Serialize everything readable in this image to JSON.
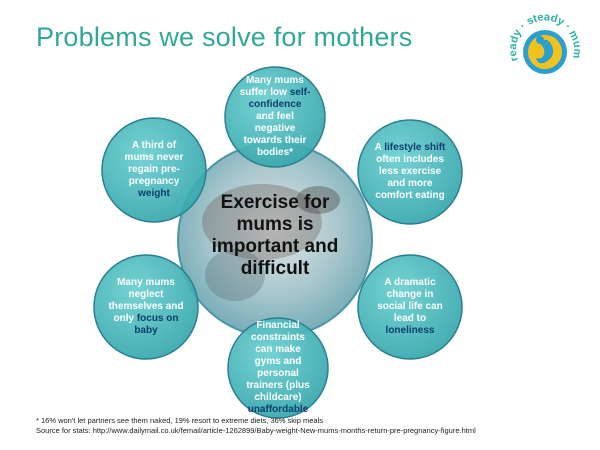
{
  "title": "Problems we solve for mothers",
  "logo": {
    "words": [
      "ready",
      "steady",
      "mums"
    ]
  },
  "center": {
    "text": "Exercise for mums is important and difficult"
  },
  "petals": [
    {
      "before": "Many mums suffer low ",
      "highlight": "self-confidence",
      "after": " and feel negative towards their bodies*"
    },
    {
      "before": "A ",
      "highlight": "lifestyle shift",
      "after": " often includes less exercise and more comfort eating"
    },
    {
      "before": "A dramatic change in social life can lead to ",
      "highlight": "loneliness",
      "after": ""
    },
    {
      "before": "Financial constraints can make gyms and personal trainers (plus childcare) ",
      "highlight": "unaffordable",
      "after": ""
    },
    {
      "before": "Many mums neglect themselves and only ",
      "highlight": "focus on baby",
      "after": ""
    },
    {
      "before": "A third of mums never regain pre-pregnancy ",
      "highlight": "weight",
      "after": ""
    }
  ],
  "footer": {
    "note": "* 16% won't let partners see them naked, 19% resort to extreme diets, 36% skip meals",
    "source": "Source for stats: http://www.dailymail.co.uk/femail/article-1262899/Baby-weight-New-mums-months-return-pre-pregnancy-figure.html"
  },
  "colors": {
    "title": "#2fa89a",
    "petal": "#4bbdbf",
    "petal_border": "#2b7f8f",
    "highlight": "#0c3f6d",
    "center": "#8fcfd1"
  }
}
